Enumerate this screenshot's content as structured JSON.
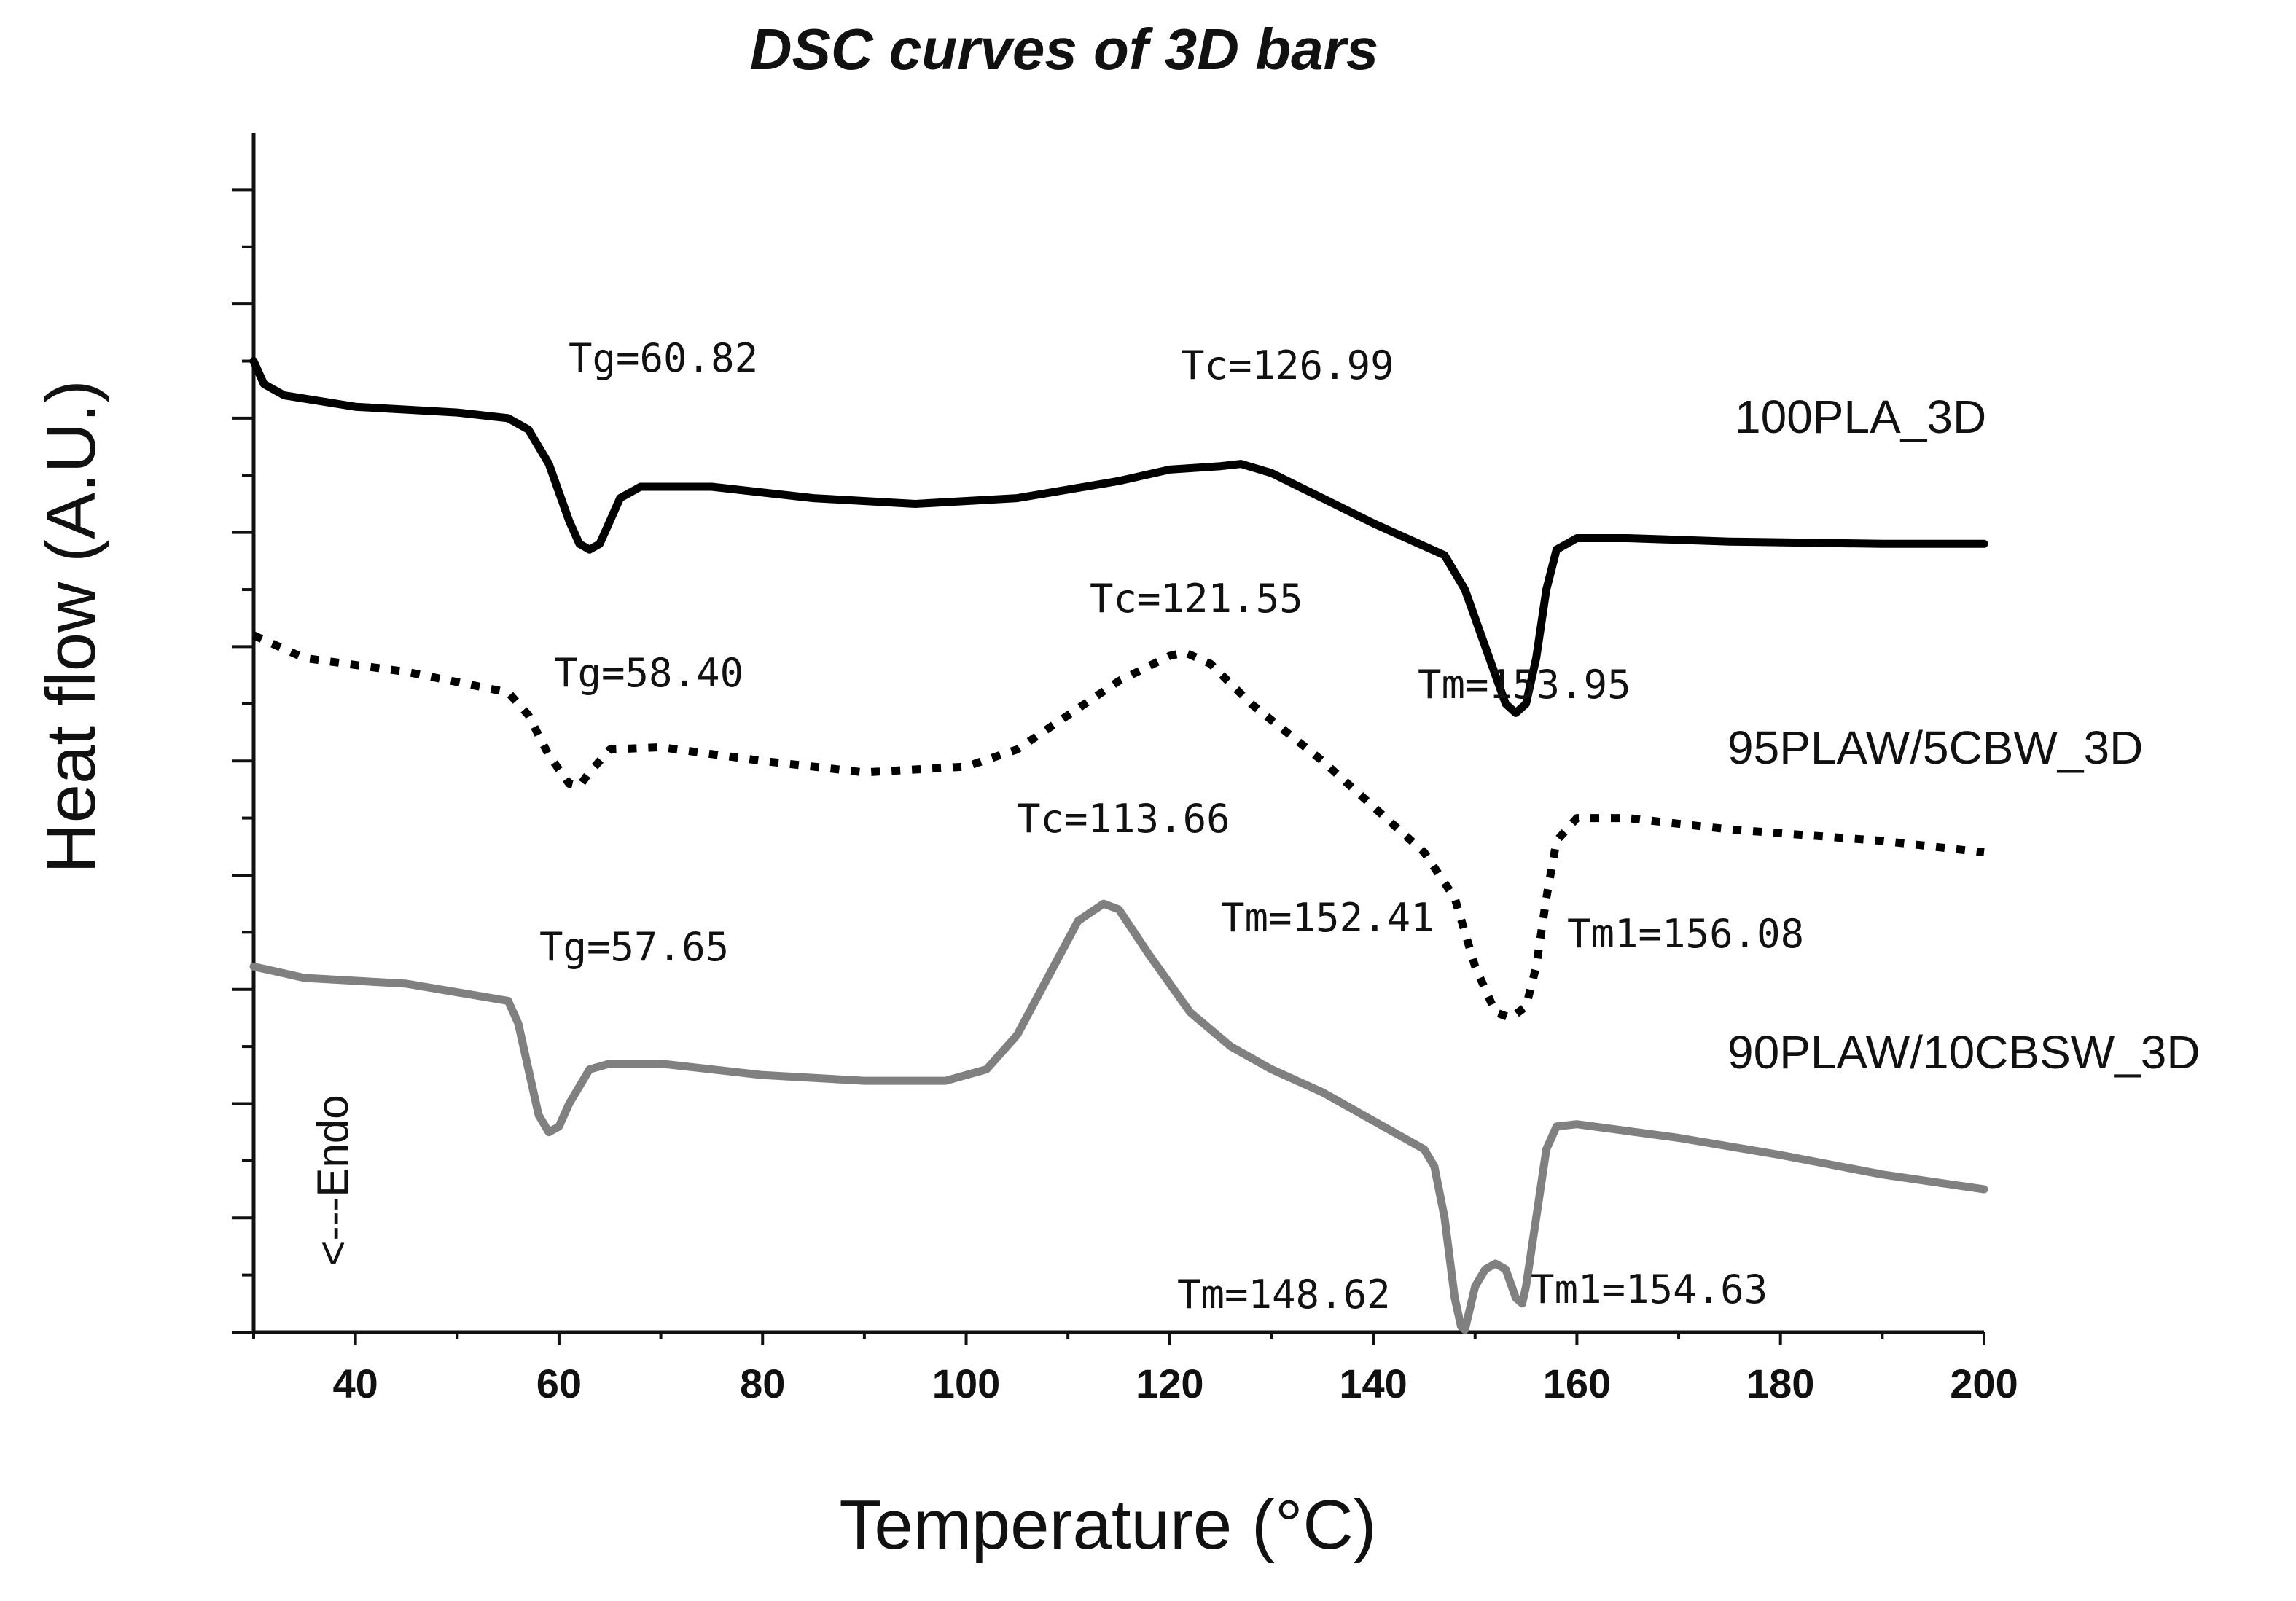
{
  "chart_data": {
    "type": "line",
    "title": "DSC curves of 3D bars",
    "xlabel": "Temperature (°C)",
    "ylabel": "Heat flow (A.U.)",
    "xlim": [
      30,
      200
    ],
    "ylim": [
      0,
      10.5
    ],
    "xticks": [
      40,
      60,
      80,
      100,
      120,
      140,
      160,
      180,
      200
    ],
    "x_tick_labels": [
      "40",
      "60",
      "80",
      "100",
      120,
      "140",
      "160",
      "180",
      "200"
    ],
    "grid": false,
    "endo_label": "<---Endo",
    "series": [
      {
        "name": "100PLA_3D",
        "style": "solid",
        "color": "#000000",
        "points": [
          [
            30,
            8.5
          ],
          [
            31,
            8.3
          ],
          [
            33,
            8.2
          ],
          [
            40,
            8.1
          ],
          [
            50,
            8.05
          ],
          [
            55,
            8.0
          ],
          [
            57,
            7.9
          ],
          [
            59,
            7.6
          ],
          [
            61,
            7.1
          ],
          [
            62,
            6.9
          ],
          [
            63,
            6.85
          ],
          [
            64,
            6.9
          ],
          [
            65,
            7.1
          ],
          [
            66,
            7.3
          ],
          [
            68,
            7.4
          ],
          [
            75,
            7.4
          ],
          [
            85,
            7.3
          ],
          [
            95,
            7.25
          ],
          [
            105,
            7.3
          ],
          [
            115,
            7.45
          ],
          [
            120,
            7.55
          ],
          [
            125,
            7.58
          ],
          [
            127,
            7.6
          ],
          [
            130,
            7.52
          ],
          [
            135,
            7.3
          ],
          [
            140,
            7.08
          ],
          [
            144,
            6.92
          ],
          [
            147,
            6.8
          ],
          [
            149,
            6.5
          ],
          [
            151,
            6.0
          ],
          [
            153,
            5.5
          ],
          [
            154,
            5.42
          ],
          [
            155,
            5.5
          ],
          [
            156,
            5.9
          ],
          [
            157,
            6.5
          ],
          [
            158,
            6.85
          ],
          [
            160,
            6.95
          ],
          [
            165,
            6.95
          ],
          [
            175,
            6.92
          ],
          [
            190,
            6.9
          ],
          [
            200,
            6.9
          ]
        ]
      },
      {
        "name": "95PLAW/5CBW_3D",
        "style": "dotted",
        "color": "#000000",
        "points": [
          [
            30,
            6.1
          ],
          [
            35,
            5.9
          ],
          [
            45,
            5.78
          ],
          [
            55,
            5.6
          ],
          [
            57,
            5.4
          ],
          [
            59,
            5.05
          ],
          [
            61,
            4.8
          ],
          [
            62,
            4.78
          ],
          [
            63,
            4.9
          ],
          [
            65,
            5.1
          ],
          [
            70,
            5.12
          ],
          [
            80,
            5.0
          ],
          [
            90,
            4.9
          ],
          [
            100,
            4.95
          ],
          [
            105,
            5.1
          ],
          [
            110,
            5.4
          ],
          [
            115,
            5.7
          ],
          [
            120,
            5.92
          ],
          [
            121.5,
            5.95
          ],
          [
            124,
            5.85
          ],
          [
            128,
            5.5
          ],
          [
            135,
            5.0
          ],
          [
            140,
            4.6
          ],
          [
            145,
            4.2
          ],
          [
            148,
            3.8
          ],
          [
            150,
            3.2
          ],
          [
            152,
            2.8
          ],
          [
            153.5,
            2.75
          ],
          [
            155,
            2.85
          ],
          [
            156,
            3.2
          ],
          [
            157,
            3.8
          ],
          [
            158,
            4.3
          ],
          [
            160,
            4.5
          ],
          [
            165,
            4.5
          ],
          [
            175,
            4.4
          ],
          [
            190,
            4.3
          ],
          [
            200,
            4.2
          ]
        ]
      },
      {
        "name": "90PLAW/10CBSW_3D",
        "style": "solid",
        "color": "#808080",
        "points": [
          [
            30,
            3.2
          ],
          [
            35,
            3.1
          ],
          [
            45,
            3.05
          ],
          [
            55,
            2.9
          ],
          [
            56,
            2.7
          ],
          [
            57,
            2.3
          ],
          [
            58,
            1.9
          ],
          [
            59,
            1.75
          ],
          [
            60,
            1.8
          ],
          [
            61,
            2.0
          ],
          [
            63,
            2.3
          ],
          [
            65,
            2.35
          ],
          [
            70,
            2.35
          ],
          [
            80,
            2.25
          ],
          [
            90,
            2.2
          ],
          [
            98,
            2.2
          ],
          [
            102,
            2.3
          ],
          [
            105,
            2.6
          ],
          [
            108,
            3.1
          ],
          [
            111,
            3.6
          ],
          [
            113.5,
            3.75
          ],
          [
            115,
            3.7
          ],
          [
            118,
            3.3
          ],
          [
            122,
            2.8
          ],
          [
            126,
            2.5
          ],
          [
            130,
            2.3
          ],
          [
            135,
            2.1
          ],
          [
            140,
            1.85
          ],
          [
            143,
            1.7
          ],
          [
            145,
            1.6
          ],
          [
            146,
            1.45
          ],
          [
            147,
            1.0
          ],
          [
            148,
            0.3
          ],
          [
            148.62,
            0.05
          ],
          [
            149,
            0.02
          ],
          [
            150,
            0.4
          ],
          [
            151,
            0.55
          ],
          [
            152,
            0.6
          ],
          [
            153,
            0.55
          ],
          [
            154,
            0.3
          ],
          [
            154.63,
            0.25
          ],
          [
            155,
            0.4
          ],
          [
            156,
            1.0
          ],
          [
            157,
            1.6
          ],
          [
            158,
            1.8
          ],
          [
            160,
            1.82
          ],
          [
            170,
            1.7
          ],
          [
            180,
            1.55
          ],
          [
            190,
            1.38
          ],
          [
            200,
            1.25
          ]
        ]
      }
    ],
    "legend_entries": [
      {
        "label": "100PLA_3D"
      },
      {
        "label": "95PLAW/5CBW_3D"
      },
      {
        "label": "90PLAW/10CBSW_3D"
      }
    ],
    "annotations": [
      {
        "text": "Tg=60.82",
        "x": 60.82,
        "y": 6.85
      },
      {
        "text": "Tc=126.99",
        "x": 126.99,
        "y": 7.6
      },
      {
        "text": "Tm=153.95",
        "x": 153.95,
        "y": 5.42
      },
      {
        "text": "Tg=58.40",
        "x": 58.4,
        "y": 4.78
      },
      {
        "text": "Tc=121.55",
        "x": 121.55,
        "y": 5.95
      },
      {
        "text": "Tm=152.41",
        "x": 152.41,
        "y": 2.75
      },
      {
        "text": "Tm1=156.08",
        "x": 156.08,
        "y": 2.85
      },
      {
        "text": "Tg=57.65",
        "x": 57.65,
        "y": 1.75
      },
      {
        "text": "Tc=113.66",
        "x": 113.66,
        "y": 3.75
      },
      {
        "text": "Tm=148.62",
        "x": 148.62,
        "y": 0.02
      },
      {
        "text": "Tm1=154.63",
        "x": 154.63,
        "y": 0.25
      }
    ]
  }
}
